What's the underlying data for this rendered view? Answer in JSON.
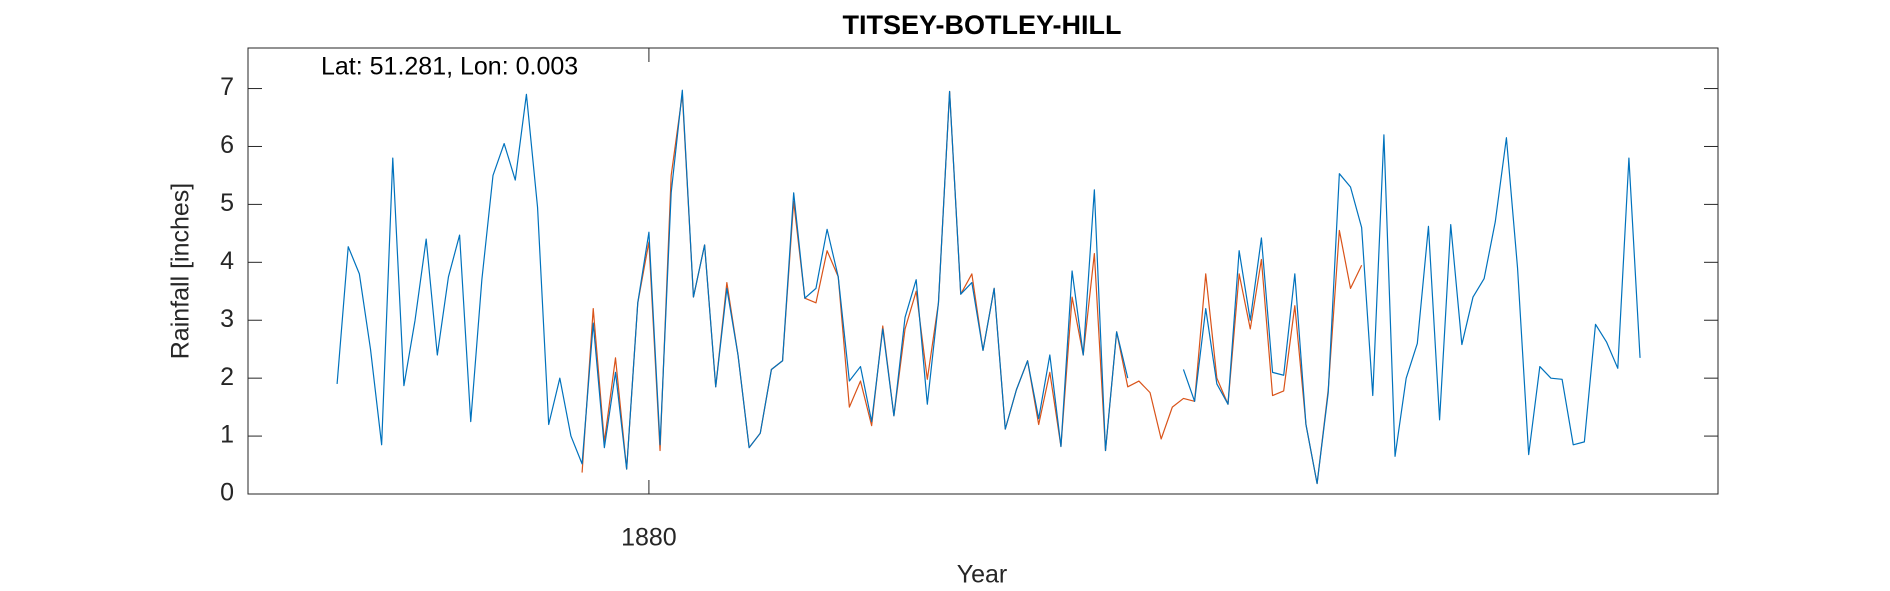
{
  "chart_data": {
    "type": "line",
    "title": "TITSEY-BOTLEY-HILL",
    "annotation": "Lat: 51.281, Lon: 0.003",
    "x_label": "Year",
    "y_label": "Rainfall [inches]",
    "x": [
      1852,
      1853,
      1854,
      1855,
      1856,
      1857,
      1858,
      1859,
      1860,
      1861,
      1862,
      1863,
      1864,
      1865,
      1866,
      1867,
      1868,
      1869,
      1870,
      1871,
      1872,
      1873,
      1874,
      1875,
      1876,
      1877,
      1878,
      1879,
      1880,
      1881,
      1882,
      1883,
      1884,
      1885,
      1886,
      1887,
      1888,
      1889,
      1890,
      1891,
      1892,
      1893,
      1894,
      1895,
      1896,
      1897,
      1898,
      1899,
      1900,
      1901,
      1902,
      1903,
      1904,
      1905,
      1906,
      1907,
      1908,
      1909,
      1910,
      1911,
      1912,
      1913,
      1914,
      1915,
      1916,
      1917,
      1918,
      1919,
      1920,
      1921,
      1922,
      1923,
      1924,
      1925,
      1926,
      1927,
      1928,
      1929,
      1930,
      1931,
      1932,
      1933,
      1934,
      1935,
      1936,
      1937,
      1938,
      1939,
      1940,
      1941,
      1942,
      1943,
      1944,
      1945,
      1946,
      1947,
      1948,
      1949,
      1950,
      1951,
      1952,
      1953,
      1954,
      1955,
      1956,
      1957,
      1958,
      1959,
      1960,
      1961,
      1962,
      1963,
      1964,
      1965,
      1966,
      1967,
      1968,
      1969
    ],
    "series": [
      {
        "color": "#D95319",
        "values": [
          null,
          null,
          null,
          null,
          null,
          null,
          null,
          null,
          null,
          null,
          null,
          null,
          null,
          null,
          null,
          null,
          null,
          null,
          null,
          null,
          null,
          null,
          0.37,
          3.2,
          0.9,
          2.35,
          0.43,
          3.3,
          4.35,
          0.75,
          5.5,
          6.9,
          3.4,
          4.3,
          1.85,
          3.65,
          2.4,
          0.8,
          1.05,
          2.15,
          2.3,
          5.05,
          3.38,
          3.3,
          4.2,
          3.75,
          1.5,
          1.95,
          1.18,
          2.9,
          1.35,
          2.85,
          3.5,
          1.98,
          3.3,
          6.95,
          3.45,
          3.8,
          2.48,
          3.55,
          1.12,
          1.8,
          2.3,
          1.2,
          2.1,
          0.82,
          3.4,
          2.4,
          4.15,
          0.75,
          2.8,
          1.85,
          1.95,
          1.75,
          0.95,
          1.5,
          1.65,
          1.6,
          3.8,
          2.0,
          1.55,
          3.8,
          2.85,
          4.05,
          1.7,
          1.78,
          3.25,
          1.2,
          0.18,
          1.8,
          4.55,
          3.55,
          3.95,
          null,
          null,
          null,
          null,
          null,
          null,
          null,
          null,
          null,
          null,
          null,
          null,
          null,
          null,
          null,
          null,
          null,
          null,
          null,
          null,
          null,
          null,
          null,
          null,
          null
        ]
      },
      {
        "color": "#0072BD",
        "values": [
          1.9,
          4.27,
          3.8,
          2.5,
          0.85,
          5.8,
          1.87,
          3.0,
          4.4,
          2.4,
          3.75,
          4.47,
          1.25,
          3.7,
          5.5,
          6.05,
          5.42,
          6.9,
          4.95,
          1.2,
          2.0,
          1.0,
          0.52,
          2.95,
          0.8,
          2.1,
          0.43,
          3.3,
          4.52,
          0.85,
          5.2,
          6.97,
          3.4,
          4.3,
          1.85,
          3.55,
          2.4,
          0.8,
          1.05,
          2.15,
          2.3,
          5.2,
          3.38,
          3.55,
          4.57,
          3.75,
          1.95,
          2.2,
          1.25,
          2.85,
          1.35,
          3.05,
          3.7,
          1.55,
          3.3,
          6.95,
          3.45,
          3.65,
          2.48,
          3.55,
          1.12,
          1.8,
          2.3,
          1.3,
          2.4,
          0.82,
          3.85,
          2.4,
          5.25,
          0.75,
          2.8,
          2.0,
          null,
          null,
          null,
          null,
          2.15,
          1.6,
          3.2,
          1.9,
          1.55,
          4.2,
          3.0,
          4.42,
          2.1,
          2.05,
          3.8,
          1.2,
          0.18,
          1.75,
          5.53,
          5.3,
          4.6,
          1.7,
          6.2,
          0.65,
          2.0,
          2.6,
          4.62,
          1.28,
          4.65,
          2.58,
          3.4,
          3.72,
          4.7,
          6.15,
          3.9,
          0.68,
          2.2,
          2.0,
          1.98,
          0.85,
          0.9,
          2.93,
          2.62,
          2.17,
          5.8,
          2.35
        ]
      }
    ],
    "xlim": [
      1844,
      1976
    ],
    "xticks": [
      1880
    ],
    "ylim": [
      0,
      7.7
    ],
    "yticks": [
      0,
      1,
      2,
      3,
      4,
      5,
      6,
      7
    ]
  }
}
